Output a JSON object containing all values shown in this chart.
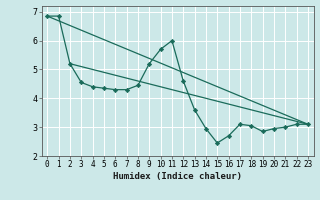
{
  "title": "",
  "xlabel": "Humidex (Indice chaleur)",
  "xlim": [
    -0.5,
    23.5
  ],
  "ylim": [
    2,
    7.2
  ],
  "yticks": [
    2,
    3,
    4,
    5,
    6,
    7
  ],
  "xticks": [
    0,
    1,
    2,
    3,
    4,
    5,
    6,
    7,
    8,
    9,
    10,
    11,
    12,
    13,
    14,
    15,
    16,
    17,
    18,
    19,
    20,
    21,
    22,
    23
  ],
  "bg_color": "#cce8e8",
  "grid_color": "#b0d8d8",
  "line_color": "#1a6b5a",
  "series": [
    {
      "x": [
        0,
        23
      ],
      "y": [
        6.85,
        3.1
      ],
      "marker": null,
      "markersize": 0,
      "linewidth": 0.9
    },
    {
      "x": [
        2,
        23
      ],
      "y": [
        5.2,
        3.1
      ],
      "marker": null,
      "markersize": 0,
      "linewidth": 0.9
    },
    {
      "x": [
        0,
        1,
        2,
        3,
        4,
        5,
        6,
        7,
        8,
        9,
        10,
        11,
        12,
        13,
        14,
        15,
        16,
        17,
        18,
        19,
        20,
        21,
        22,
        23
      ],
      "y": [
        6.85,
        6.85,
        5.2,
        4.55,
        4.4,
        4.35,
        4.3,
        4.3,
        4.45,
        5.2,
        5.7,
        6.0,
        4.6,
        3.6,
        2.95,
        2.45,
        2.7,
        3.1,
        3.05,
        2.85,
        2.95,
        3.0,
        3.1,
        3.1
      ],
      "marker": "D",
      "markersize": 2.2,
      "linewidth": 0.9
    }
  ]
}
